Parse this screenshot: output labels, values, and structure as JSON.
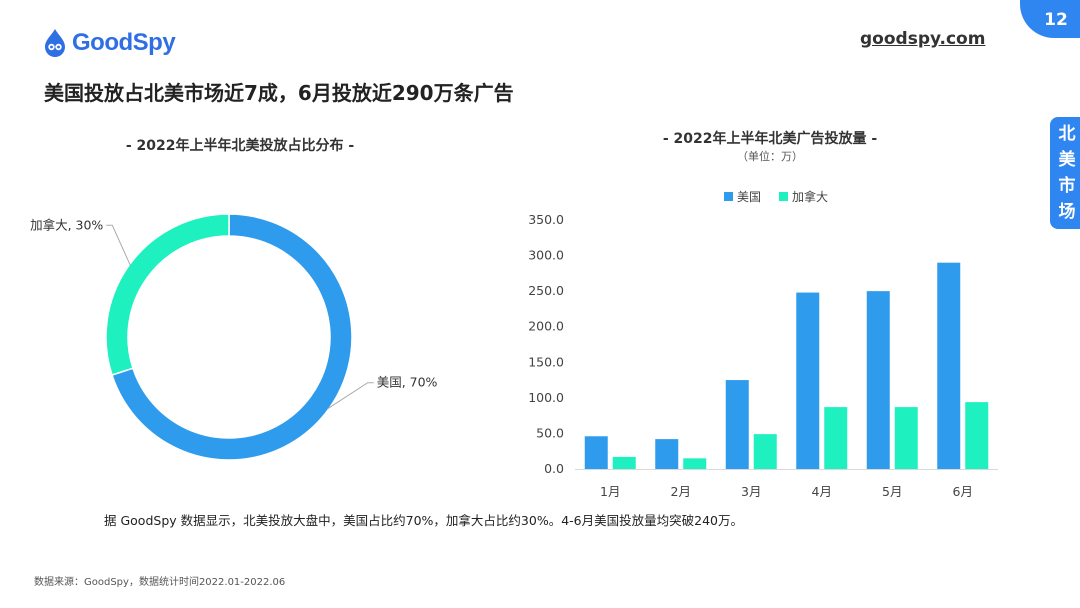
{
  "brand": {
    "name": "GoodSpy",
    "url": "goodspy.com",
    "color": "#2f6fe4"
  },
  "page_number": "12",
  "side_tab": "北美市场",
  "main_title": "美国投放占北美市场近7成，6月投放近290万条广告",
  "caption": "据 GoodSpy 数据显示，北美投放大盘中，美国占比约70%，加拿大占比约30%。4-6月美国投放量均突破240万。",
  "source": "数据来源：GoodSpy，数据统计时间2022.01-2022.06",
  "chart_data": [
    {
      "type": "pie",
      "donut": true,
      "title": "- 2022年上半年北美投放占比分布 -",
      "slices": [
        {
          "label": "美国",
          "value": 70,
          "display": "美国, 70%",
          "color": "#2f9bed"
        },
        {
          "label": "加拿大",
          "value": 30,
          "display": "加拿大, 30%",
          "color": "#1ef0c0"
        }
      ]
    },
    {
      "type": "bar",
      "title": "- 2022年上半年北美广告投放量 -",
      "subtitle": "（单位：万）",
      "categories": [
        "1月",
        "2月",
        "3月",
        "4月",
        "5月",
        "6月"
      ],
      "series": [
        {
          "name": "美国",
          "color": "#2f9bed",
          "values": [
            46,
            42,
            125,
            248,
            250,
            290
          ]
        },
        {
          "name": "加拿大",
          "color": "#1ef0c0",
          "values": [
            17,
            15,
            49,
            87,
            87,
            94
          ]
        }
      ],
      "ylim": [
        0,
        350
      ],
      "yticks": [
        "0.0",
        "50.0",
        "100.0",
        "150.0",
        "200.0",
        "250.0",
        "300.0",
        "350.0"
      ],
      "grid": false,
      "legend_position": "top"
    }
  ]
}
